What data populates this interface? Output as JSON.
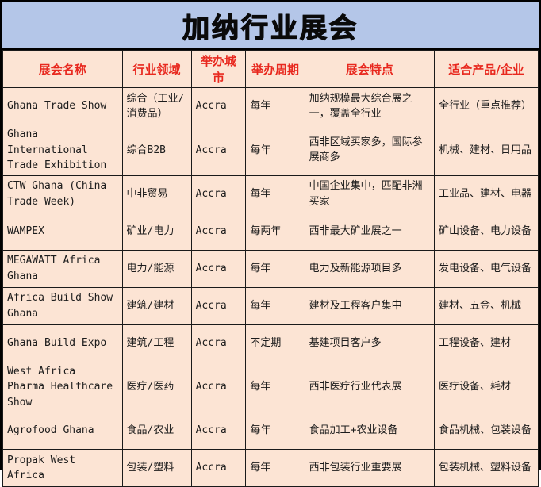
{
  "banner": {
    "title": "加纳行业展会",
    "bg_color": "#b4c6e8",
    "text_color": "#0a0a0a"
  },
  "table": {
    "header_text_color": "#e8281e",
    "cell_bg_color": "#fce4d4",
    "grid_color": "#1a1a1a",
    "columns": [
      "展会名称",
      "行业领域",
      "举办城市",
      "举办周期",
      "展会特点",
      "适合产品/企业"
    ],
    "column_keys": [
      "exhibition-name",
      "industry-field",
      "host-city",
      "frequency",
      "features",
      "suitable-products"
    ],
    "rows": [
      [
        "Ghana Trade Show",
        "综合（工业/消费品）",
        "Accra",
        "每年",
        "加纳规模最大综合展之一，覆盖全行业",
        "全行业（重点推荐）"
      ],
      [
        "Ghana International Trade Exhibition",
        "综合B2B",
        "Accra",
        "每年",
        "西非区域买家多，国际参展商多",
        "机械、建材、日用品"
      ],
      [
        "CTW Ghana (China Trade Week)",
        "中非贸易",
        "Accra",
        "每年",
        "中国企业集中，匹配非洲买家",
        "工业品、建材、电器"
      ],
      [
        "WAMPEX",
        "矿业/电力",
        "Accra",
        "每两年",
        "西非最大矿业展之一",
        "矿山设备、电力设备"
      ],
      [
        "MEGAWATT Africa Ghana",
        "电力/能源",
        "Accra",
        "每年",
        "电力及新能源项目多",
        "发电设备、电气设备"
      ],
      [
        "Africa Build Show Ghana",
        "建筑/建材",
        "Accra",
        "每年",
        "建材及工程客户集中",
        "建材、五金、机械"
      ],
      [
        "Ghana Build Expo",
        "建筑/工程",
        "Accra",
        "不定期",
        "基建项目客户多",
        "工程设备、建材"
      ],
      [
        "West Africa Pharma Healthcare Show",
        "医疗/医药",
        "Accra",
        "每年",
        "西非医疗行业代表展",
        "医疗设备、耗材"
      ],
      [
        "Agrofood Ghana",
        "食品/农业",
        "Accra",
        "每年",
        "食品加工+农业设备",
        "食品机械、包装设备"
      ],
      [
        "Propak West Africa",
        "包装/塑料",
        "Accra",
        "每年",
        "西非包装行业重要展",
        "包装机械、塑料设备"
      ]
    ]
  }
}
